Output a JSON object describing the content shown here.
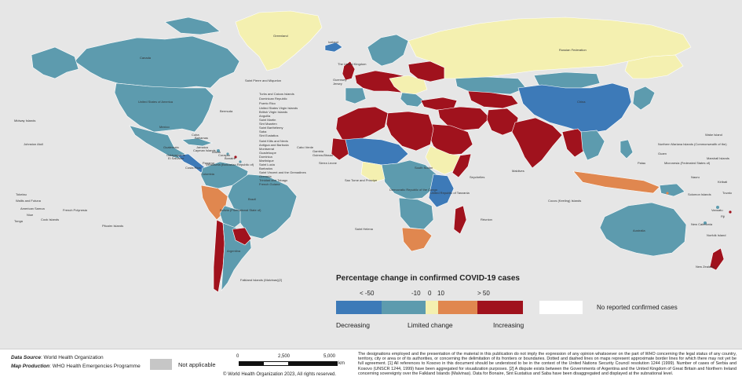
{
  "legend": {
    "title": "Percentage change in confirmed COVID-19 cases",
    "ticks": [
      "< -50",
      "-10",
      "0",
      "10",
      "> 50"
    ],
    "categories": [
      "Decreasing",
      "Limited change",
      "Increasing"
    ],
    "no_report_label": "No reported confirmed cases",
    "colors": {
      "strong_decrease": "#3d7ab8",
      "decrease": "#5d9bae",
      "limited": "#f4f0b0",
      "increase": "#e0874f",
      "strong_increase": "#a0121d",
      "no_report": "#ffffff",
      "not_applicable": "#c6c6c6",
      "water": "#e6e6e6"
    }
  },
  "footer": {
    "source_label": "Data Source",
    "source_value": ": World Health Organization",
    "production_label": "Map Production",
    "production_value": ": WHO Health Emergencies Programme",
    "not_applicable_label": "Not applicable",
    "scale": {
      "ticks": [
        "0",
        "2,500",
        "5,000"
      ],
      "unit": "km"
    },
    "copyright": "© World Health Organization 2023, All rights reserved.",
    "disclaimer": "The designations employed and the presentation of the material in this publication do not imply the expression of any opinion whatsoever on the part of WHO concerning the legal status of any country, territory, city or area or of its authorities, or concerning the delimitation of its frontiers or boundaries. Dotted and dashed lines on maps represent approximate border lines for which there may not yet be full agreement. [1] All references to Kosovo in this document should be understood to be in the context of the United Nations Security Council resolution 1244 (1999). Number of cases of Serbia and Kosovo (UNSCR 1244, 1999) have been aggregated for visualization purposes. [2] A dispute exists between the Governments of Argentina and the United Kingdom of Great Britain and Northern Ireland concerning sovereignty over the Falkland Islands (Malvinas). Data for Bonaire, Sint Eustatius and Saba have been disaggregated and displayed at the subnational level."
  },
  "map_labels": {
    "greenland": "Greenland",
    "canada": "Canada",
    "usa": "United States of America",
    "mexico": "Mexico",
    "brazil": "Brazil",
    "argentina": "Argentina",
    "russia": "Russian Federation",
    "china": "China",
    "australia": "Australia",
    "new_zealand": "New Zealand",
    "iceland": "Iceland",
    "uk": "The United Kingdom",
    "bermuda": "Bermuda",
    "saint_pierre": "Saint Pierre and Miquelon",
    "midway": "Midway Islands",
    "johnston": "Johnston Atoll",
    "galapagos": "Galápagos Is",
    "cabo_verde": "Cabo Verde",
    "sao_tome": "Sao Tome and Principe",
    "saint_helena": "Saint Helena",
    "seychelles": "Seychelles",
    "maldives": "Maldives",
    "reunion": "Réunion",
    "falkland": "Falkland Islands (Malvinas)[2]",
    "french_polynesia": "French Polynesia",
    "cook_islands": "Cook Islands",
    "pitcairn": "Pitcairn Islands",
    "tokelau": "Tokelau",
    "samoa": "Wallis and Futuna",
    "american_samoa": "American Samoa",
    "niue": "Niue",
    "tonga": "Tonga",
    "palau": "Palau",
    "guam": "Guam",
    "wake": "Wake Island",
    "micronesia": "Micronesia (Federated States of)",
    "marshall": "Marshall Islands",
    "nauru": "Nauru",
    "kiribati": "Kiribati",
    "solomon": "Solomon Islands",
    "vanuatu": "Vanuatu",
    "fiji": "Fiji",
    "new_caledonia": "New Caledonia",
    "norfolk": "Norfolk Island",
    "tuvalu": "Tuvalu",
    "northern_mariana": "Northern Mariana Islands (Commonwealth of the)",
    "cocos": "Cocos (Keeling) Islands",
    "caribbean_1": "Turks and Caicos Islands",
    "caribbean_2": "Dominican Republic",
    "caribbean_3": "Puerto Rico",
    "caribbean_4": "United States Virgin Islands",
    "caribbean_5": "British Virgin Islands",
    "caribbean_6": "Anguilla",
    "caribbean_7": "Saint Martin",
    "caribbean_8": "Sint Maarten",
    "caribbean_9": "Saint Barthélemy",
    "caribbean_10": "Saba",
    "caribbean_11": "Sint Eustatius",
    "caribbean_12": "Saint Kitts and Nevis",
    "caribbean_13": "Antigua and Barbuda",
    "caribbean_14": "Montserrat",
    "caribbean_15": "Guadeloupe",
    "caribbean_16": "Dominica",
    "caribbean_17": "Martinique",
    "caribbean_18": "Saint Lucia",
    "caribbean_19": "Barbados",
    "caribbean_20": "Saint Vincent and the Grenadines",
    "caribbean_21": "Grenada",
    "caribbean_22": "Trinidad and Tobago",
    "caribbean_23": "French Guiana",
    "cuba": "Cuba",
    "jamaica": "Jamaica",
    "cayman": "Cayman Islands",
    "bahamas": "Bahamas",
    "guatemala": "Guatemala",
    "el_salvador": "El Salvador",
    "costa_rica": "Costa Rica",
    "panama": "Panama",
    "venezuela": "Venezuela (Bolivarian Republic of)",
    "colombia": "Colombia",
    "bolivia": "Bolivia (Plurinational State of)",
    "aruba": "Aruba",
    "curacao": "Curaçao",
    "bonaire": "Bonaire",
    "dem_rep_congo": "Democratic Republic of the Congo",
    "tanzania": "United Republic of Tanzania",
    "guinea_bissau": "Guinea-Bissau",
    "gambia": "Gambia",
    "sierra_leone": "Sierra Leone",
    "south_sudan": "South Sudan",
    "guernsey": "Guernsey",
    "jersey": "Jersey"
  }
}
